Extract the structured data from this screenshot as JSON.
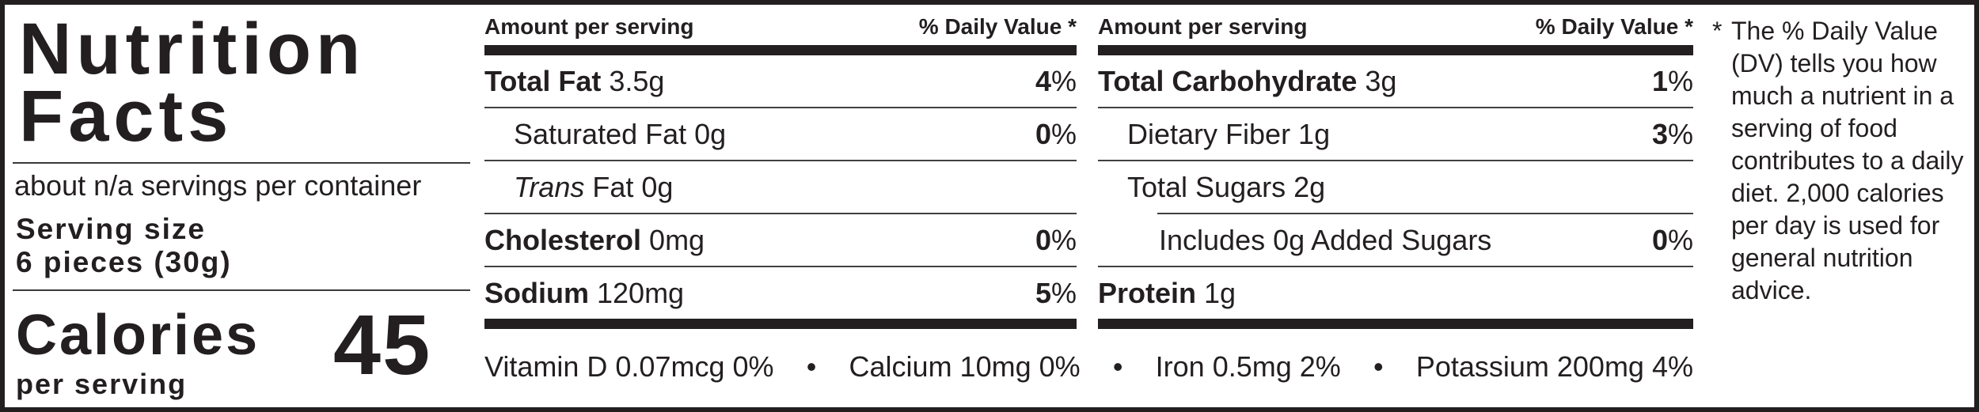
{
  "left": {
    "title_line1": "Nutrition",
    "title_line2": "Facts",
    "servings_line": "about n/a servings per container",
    "serving_size_label": "Serving size",
    "serving_size_value": "6 pieces (30g)",
    "calories_word": "Calories",
    "calories_sub": "per serving",
    "calories_value": "45"
  },
  "col1": {
    "header_left": "Amount per serving",
    "header_right": "% Daily Value *",
    "rows": [
      {
        "bold": "Total Fat",
        "text": " 3.5g",
        "dv": "4",
        "pct": "%"
      },
      {
        "text": "Saturated Fat 0g",
        "dv": "0",
        "pct": "%"
      },
      {
        "italic": "Trans",
        "text": " Fat 0g"
      },
      {
        "bold": "Cholesterol",
        "text": " 0mg",
        "dv": "0",
        "pct": "%"
      },
      {
        "bold": "Sodium",
        "text": " 120mg",
        "dv": "5",
        "pct": "%"
      }
    ]
  },
  "col2": {
    "header_left": "Amount per serving",
    "header_right": "% Daily Value *",
    "rows": [
      {
        "bold": "Total Carbohydrate",
        "text": " 3g",
        "dv": "1",
        "pct": "%"
      },
      {
        "text": "Dietary Fiber 1g",
        "dv": "3",
        "pct": "%"
      },
      {
        "text": "Total Sugars 2g"
      },
      {
        "text": "Includes 0g Added Sugars",
        "dv": "0",
        "pct": "%"
      },
      {
        "bold": "Protein",
        "text": " 1g"
      }
    ]
  },
  "micronutrients": {
    "separator": "•",
    "items": [
      "Vitamin D 0.07mcg 0%",
      "Calcium 10mg 0%",
      "Iron 0.5mg 2%",
      "Potassium 200mg 4%"
    ]
  },
  "footnote": {
    "asterisk": "*",
    "text": "The % Daily Value (DV) tells you how much a nutrient in a serving of food contributes to a daily diet. 2,000 calories per day is used for general nutrition advice."
  }
}
